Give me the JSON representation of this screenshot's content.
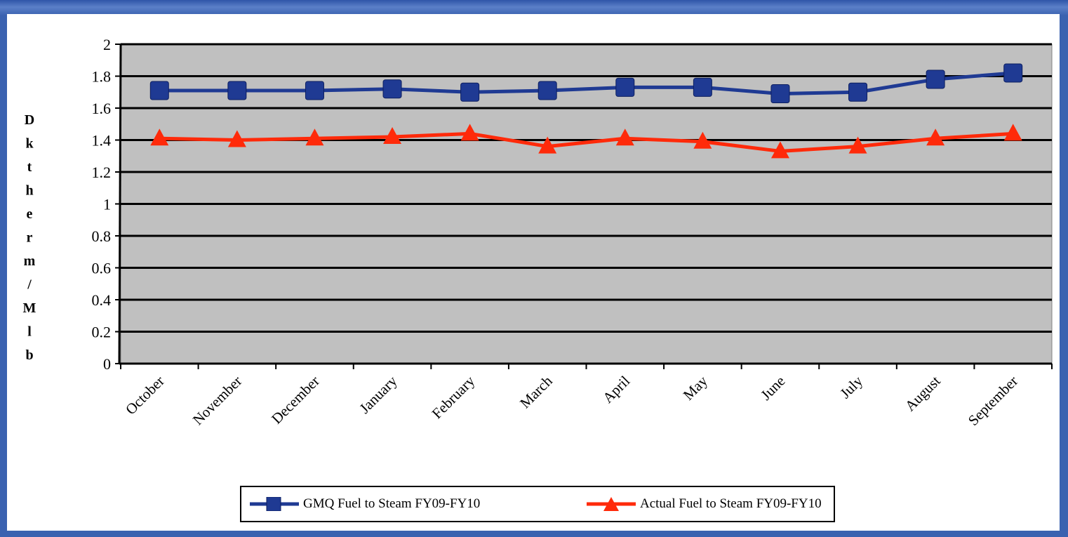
{
  "chart_data": {
    "type": "line",
    "categories": [
      "October",
      "November",
      "December",
      "January",
      "February",
      "March",
      "April",
      "May",
      "June",
      "July",
      "August",
      "September"
    ],
    "series": [
      {
        "name": "GMQ Fuel to Steam FY09-FY10",
        "color": "#1f3a93",
        "marker": "square",
        "values": [
          1.71,
          1.71,
          1.71,
          1.72,
          1.7,
          1.71,
          1.73,
          1.73,
          1.69,
          1.7,
          1.78,
          1.82
        ]
      },
      {
        "name": "Actual Fuel to Steam FY09-FY10",
        "color": "#ff2a0a",
        "marker": "triangle",
        "values": [
          1.41,
          1.4,
          1.41,
          1.42,
          1.44,
          1.36,
          1.41,
          1.39,
          1.33,
          1.36,
          1.41,
          1.44
        ]
      }
    ],
    "ylabel": "Dktherm/Mlb",
    "ylim": [
      0,
      2
    ],
    "yticks": [
      "0",
      "0.2",
      "0.4",
      "0.6",
      "0.8",
      "1",
      "1.2",
      "1.4",
      "1.6",
      "1.8",
      "2"
    ],
    "grid": true,
    "plot_background": "#c0c0c0",
    "legend_position": "bottom"
  }
}
